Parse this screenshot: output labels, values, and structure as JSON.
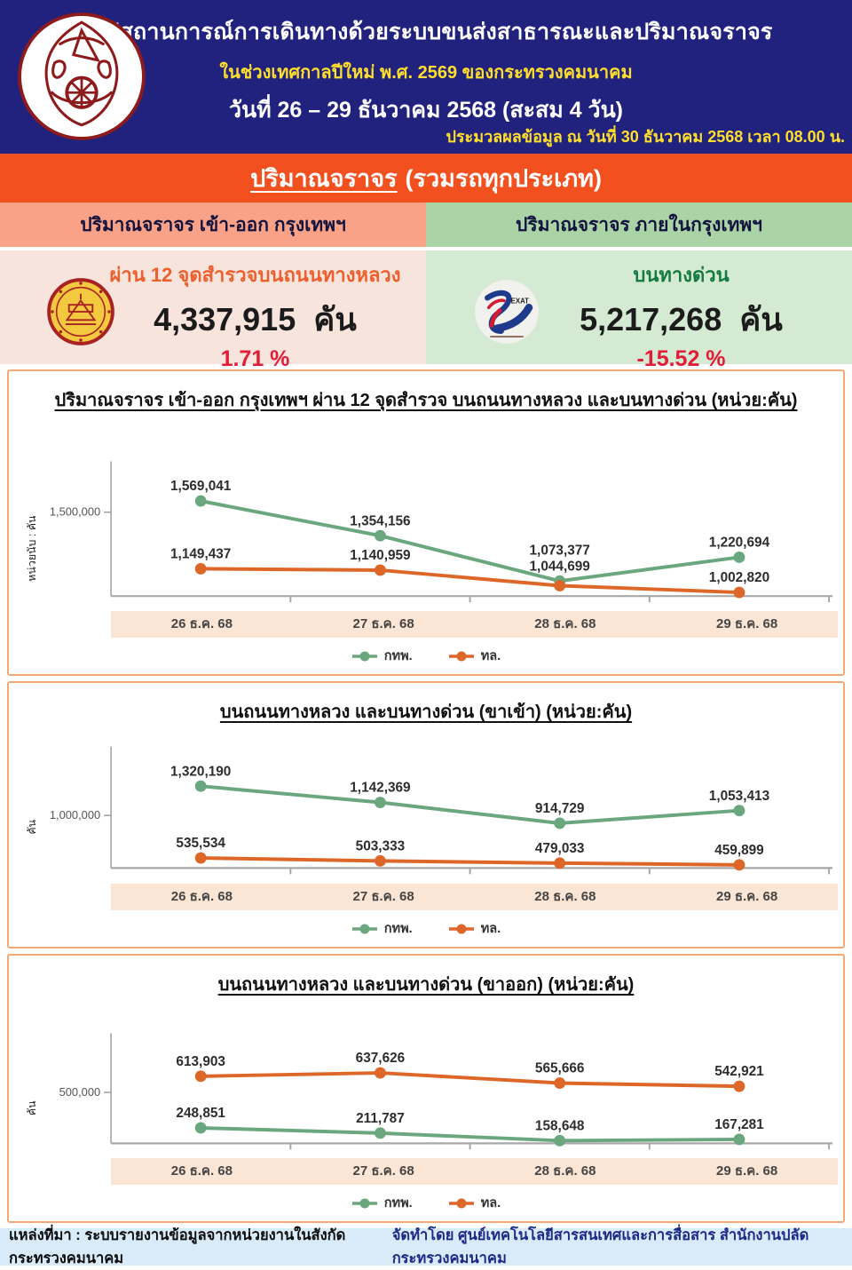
{
  "header": {
    "title": "สรุปสถานการณ์การเดินทางด้วยระบบขนส่งสาธารณะและปริมาณจราจร",
    "subtitle": "ในช่วงเทศกาลปีใหม่ พ.ศ. 2569 ของกระทรวงคมนาคม",
    "date_range": "วันที่ 26 – 29 ธันวาคม 2568 (สะสม 4 วัน)",
    "processed_note": "ประมวลผลข้อมูล ณ วันที่ 30 ธันวาคม 2568 เวลา 08.00 น.",
    "logo": "ministry-of-transport-seal"
  },
  "section_title": {
    "underlined": "ปริมาณจราจร",
    "rest": "(รวมรถทุกประเภท)"
  },
  "columns": {
    "left": {
      "header": "ปริมาณจราจร เข้า-ออก กรุงเทพฯ",
      "subtitle": "ผ่าน 12 จุดสำรวจบนถนนทางหลวง",
      "value": "4,337,915",
      "unit": "คัน",
      "percent": "1.71 %",
      "logo": "department-of-highways-seal"
    },
    "right": {
      "header": "ปริมาณจราจร ภายในกรุงเทพฯ",
      "subtitle": "บนทางด่วน",
      "value": "5,217,268",
      "unit": "คัน",
      "percent": "-15.52 %",
      "logo": "exat-logo",
      "logo_text": "EXAT"
    }
  },
  "colors": {
    "navy": "#21217e",
    "orange_band": "#f2511f",
    "yellow_text": "#ffdf2b",
    "salmon_header": "#f9a287",
    "green_header": "#abd4a6",
    "pale_pink": "#f7e4dd",
    "pale_green": "#d5ead2",
    "accent_orange_text": "#ed5f2c",
    "accent_green_text": "#147a42",
    "percent_red": "#e11d38",
    "series_green": "#6ba77e",
    "series_orange": "#dd6728",
    "panel_border": "#f3a877",
    "xband_bg": "#fbe5d4",
    "footer_bg": "#d9eaf8"
  },
  "chart_data": [
    {
      "type": "line",
      "title": "ปริมาณจราจร เข้า-ออก กรุงเทพฯ ผ่าน 12 จุดสำรวจ บนถนนทางหลวง และบนทางด่วน (หน่วย:คัน)",
      "ylabel": "หน่วยนับ : คัน",
      "ytick": {
        "label": "1,500,000",
        "value": 1500000
      },
      "categories": [
        "26 ธ.ค. 68",
        "27 ธ.ค. 68",
        "28 ธ.ค. 68",
        "29 ธ.ค. 68"
      ],
      "series": [
        {
          "name": "กทพ.",
          "color": "#6ba77e",
          "values": [
            1569041,
            1354156,
            1073377,
            1220694
          ]
        },
        {
          "name": "ทล.",
          "color": "#dd6728",
          "values": [
            1149437,
            1140959,
            1044699,
            1002820
          ]
        }
      ],
      "grid": false,
      "legend_position": "bottom"
    },
    {
      "type": "line",
      "title": "บนถนนทางหลวง และบนทางด่วน (ขาเข้า) (หน่วย:คัน)",
      "ylabel": "คัน",
      "ytick": {
        "label": "1,000,000",
        "value": 1000000
      },
      "categories": [
        "26 ธ.ค. 68",
        "27 ธ.ค. 68",
        "28 ธ.ค. 68",
        "29 ธ.ค. 68"
      ],
      "series": [
        {
          "name": "กทพ.",
          "color": "#6ba77e",
          "values": [
            1320190,
            1142369,
            914729,
            1053413
          ]
        },
        {
          "name": "ทล.",
          "color": "#dd6728",
          "values": [
            535534,
            503333,
            479033,
            459899
          ]
        }
      ],
      "grid": false,
      "legend_position": "bottom"
    },
    {
      "type": "line",
      "title": "บนถนนทางหลวง และบนทางด่วน (ขาออก) (หน่วย:คัน)",
      "ylabel": "คัน",
      "ytick": {
        "label": "500,000",
        "value": 500000
      },
      "categories": [
        "26 ธ.ค. 68",
        "27 ธ.ค. 68",
        "28 ธ.ค. 68",
        "29 ธ.ค. 68"
      ],
      "series": [
        {
          "name": "กทพ.",
          "color": "#6ba77e",
          "values": [
            248851,
            211787,
            158648,
            167281
          ]
        },
        {
          "name": "ทล.",
          "color": "#dd6728",
          "values": [
            613903,
            637626,
            565666,
            542921
          ]
        }
      ],
      "grid": false,
      "legend_position": "bottom"
    }
  ],
  "footer": {
    "source": "แหล่งที่มา : ระบบรายงานข้อมูลจากหน่วยงานในสังกัดกระทรวงคมนาคม",
    "credit": "จัดทำโดย ศูนย์เทคโนโลยีสารสนเทศและการสื่อสาร สำนักงานปลัดกระทรวงคมนาคม"
  }
}
